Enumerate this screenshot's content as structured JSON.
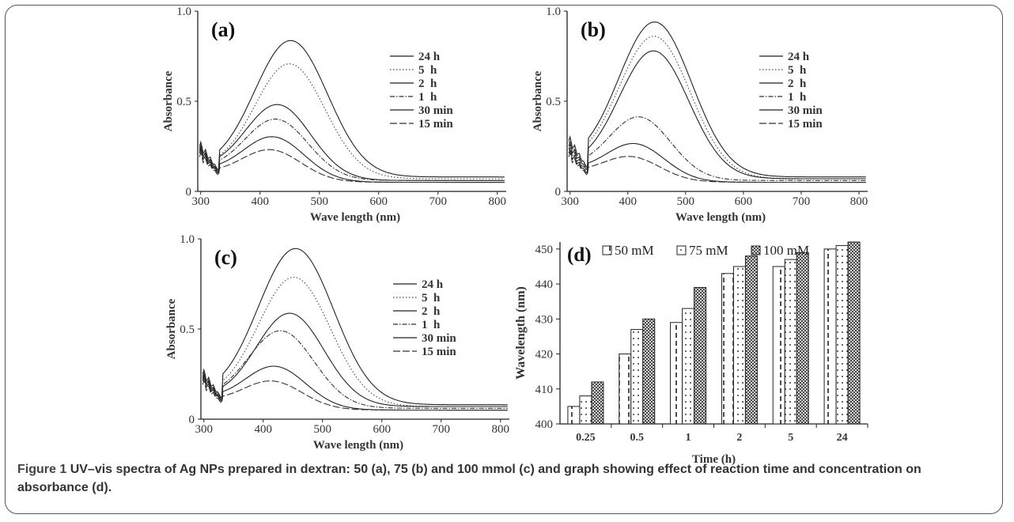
{
  "caption": {
    "label": "Figure 1",
    "text": "UV–vis spectra of Ag NPs prepared in dextran: 50 (a), 75 (b) and 100 mmol (c) and graph showing effect of reaction time and concentration on absorbance (d)."
  },
  "chart_data": [
    {
      "type": "line",
      "panel": "(a)",
      "xlabel": "Wave length (nm)",
      "ylabel": "Absorbance",
      "xlim": [
        295,
        815
      ],
      "ylim": [
        0,
        1.0
      ],
      "xticks": [
        300,
        400,
        500,
        600,
        700,
        800
      ],
      "yticks": [
        0,
        0.5,
        1.0
      ],
      "ytick_labels": [
        "0",
        "0.5",
        "1.0"
      ],
      "legend_position": "right",
      "series": [
        {
          "name": "24 h",
          "dash": "solid",
          "peak": 0.83,
          "center": 452,
          "start": 0.26,
          "tail": 0.08
        },
        {
          "name": "5  h",
          "dash": "dotted",
          "peak": 0.7,
          "center": 450,
          "start": 0.25,
          "tail": 0.07
        },
        {
          "name": "2  h",
          "dash": "solid",
          "peak": 0.47,
          "center": 430,
          "start": 0.24,
          "tail": 0.06
        },
        {
          "name": "1  h",
          "dash": "dashdot",
          "peak": 0.39,
          "center": 427,
          "start": 0.23,
          "tail": 0.06
        },
        {
          "name": "30 min",
          "dash": "solid",
          "peak": 0.29,
          "center": 422,
          "start": 0.22,
          "tail": 0.05
        },
        {
          "name": "15 min",
          "dash": "longdash",
          "peak": 0.22,
          "center": 418,
          "start": 0.2,
          "tail": 0.05
        }
      ]
    },
    {
      "type": "line",
      "panel": "(b)",
      "xlabel": "Wave length (nm)",
      "ylabel": "Absorbance",
      "xlim": [
        295,
        815
      ],
      "ylim": [
        0,
        1.0
      ],
      "xticks": [
        300,
        400,
        500,
        600,
        700,
        800
      ],
      "yticks": [
        0,
        0.5,
        1.0
      ],
      "ytick_labels": [
        "0",
        "0.5",
        "1.0"
      ],
      "legend_position": "right",
      "series": [
        {
          "name": "24 h",
          "dash": "solid",
          "peak": 0.93,
          "center": 447,
          "start": 0.29,
          "tail": 0.08
        },
        {
          "name": "5  h",
          "dash": "dotted",
          "peak": 0.85,
          "center": 446,
          "start": 0.28,
          "tail": 0.07
        },
        {
          "name": "2  h",
          "dash": "solid",
          "peak": 0.77,
          "center": 445,
          "start": 0.26,
          "tail": 0.07
        },
        {
          "name": "1  h",
          "dash": "dashdot",
          "peak": 0.4,
          "center": 420,
          "start": 0.24,
          "tail": 0.06
        },
        {
          "name": "30 min",
          "dash": "solid",
          "peak": 0.25,
          "center": 412,
          "start": 0.22,
          "tail": 0.05
        },
        {
          "name": "15 min",
          "dash": "longdash",
          "peak": 0.18,
          "center": 405,
          "start": 0.2,
          "tail": 0.05
        }
      ]
    },
    {
      "type": "line",
      "panel": "(c)",
      "xlabel": "Wave length (nm)",
      "ylabel": "Absorbance",
      "xlim": [
        295,
        815
      ],
      "ylim": [
        0,
        1.0
      ],
      "xticks": [
        300,
        400,
        500,
        600,
        700,
        800
      ],
      "yticks": [
        0,
        0.5,
        1.0
      ],
      "ytick_labels": [
        "0",
        "0.5",
        "1.0"
      ],
      "legend_position": "right",
      "series": [
        {
          "name": "24 h",
          "dash": "solid",
          "peak": 0.94,
          "center": 455,
          "start": 0.26,
          "tail": 0.08
        },
        {
          "name": "5  h",
          "dash": "dotted",
          "peak": 0.78,
          "center": 452,
          "start": 0.25,
          "tail": 0.07
        },
        {
          "name": "2  h",
          "dash": "solid",
          "peak": 0.58,
          "center": 445,
          "start": 0.24,
          "tail": 0.07
        },
        {
          "name": "1  h",
          "dash": "dashdot",
          "peak": 0.48,
          "center": 430,
          "start": 0.23,
          "tail": 0.06
        },
        {
          "name": "30 min",
          "dash": "solid",
          "peak": 0.28,
          "center": 420,
          "start": 0.22,
          "tail": 0.05
        },
        {
          "name": "15 min",
          "dash": "longdash",
          "peak": 0.2,
          "center": 415,
          "start": 0.2,
          "tail": 0.05
        }
      ]
    },
    {
      "type": "bar",
      "panel": "(d)",
      "xlabel": "Time (h)",
      "ylabel": "Wavelength (nm)",
      "ylim": [
        400,
        452
      ],
      "yticks": [
        400,
        410,
        420,
        430,
        440,
        450
      ],
      "categories": [
        "0.25",
        "0.5",
        "1",
        "2",
        "5",
        "24"
      ],
      "legend_position": "top",
      "series": [
        {
          "name": "50 mM",
          "pattern": "dashes",
          "values": [
            405,
            420,
            429,
            443,
            445,
            450
          ]
        },
        {
          "name": "75 mM",
          "pattern": "dots",
          "values": [
            408,
            427,
            433,
            445,
            447,
            451
          ]
        },
        {
          "name": "100 mM",
          "pattern": "crosshatch",
          "values": [
            412,
            430,
            439,
            448,
            449,
            452
          ]
        }
      ]
    }
  ]
}
